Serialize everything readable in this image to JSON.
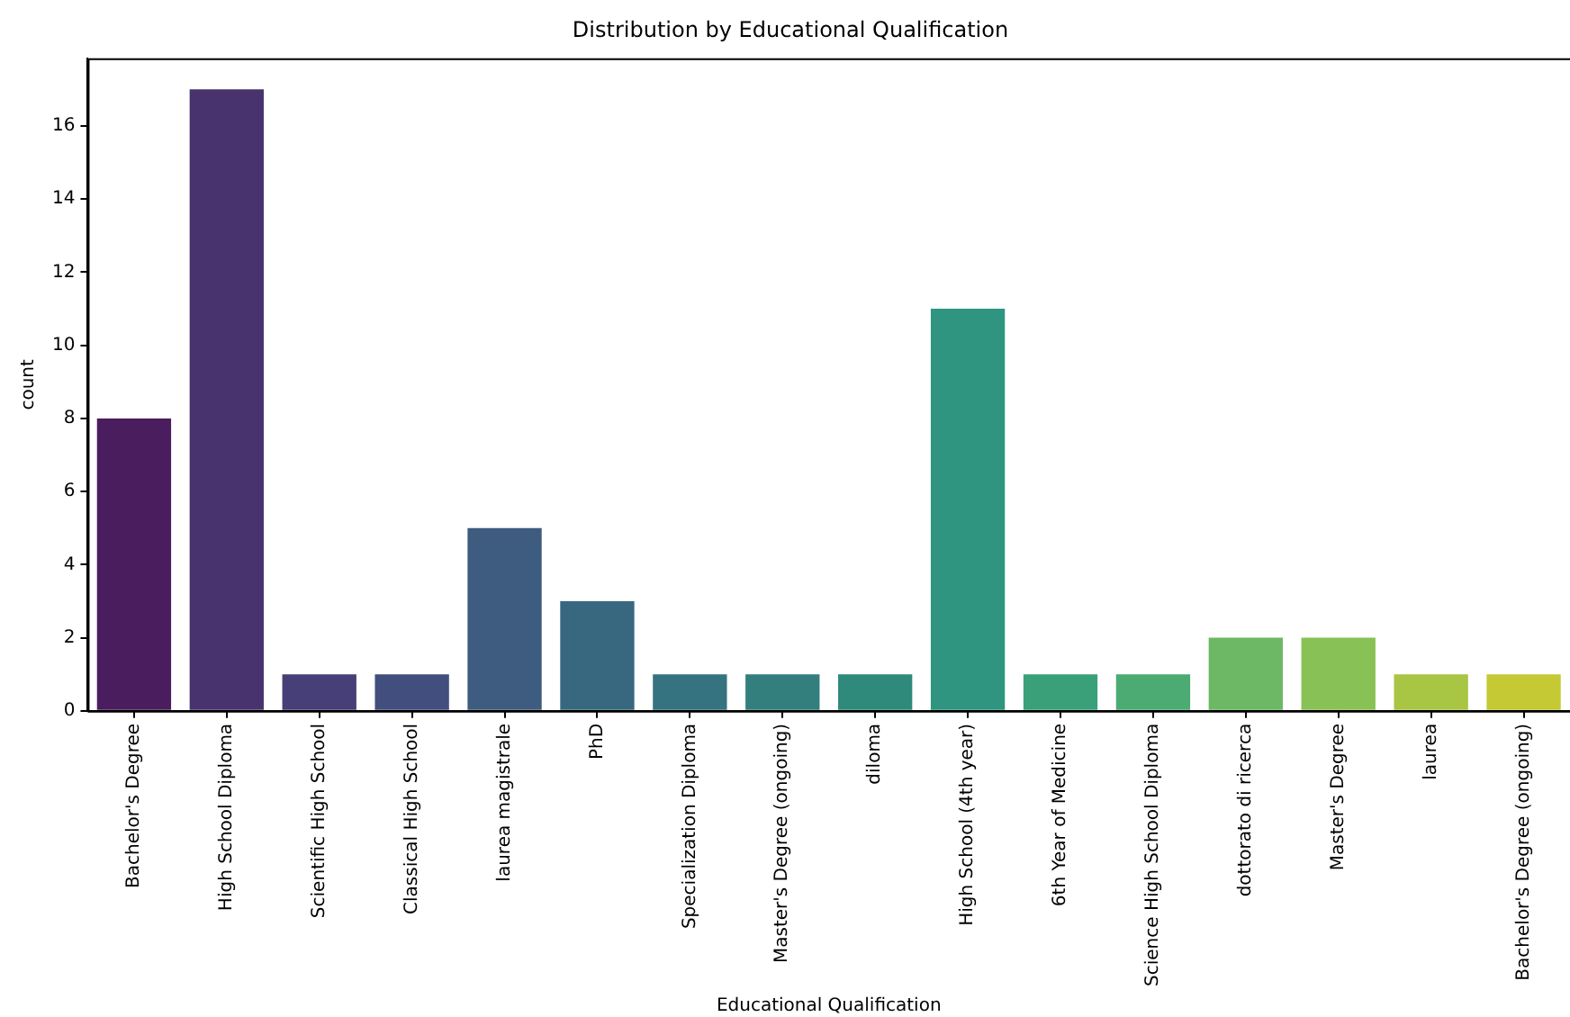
{
  "chart_data": {
    "type": "bar",
    "title": "Distribution by Educational Qualification",
    "xlabel": "Educational Qualification",
    "ylabel": "count",
    "categories": [
      "Bachelor's Degree",
      "High School Diploma",
      "Scientific High School",
      "Classical High School",
      "laurea magistrale",
      "PhD",
      "Specialization Diploma",
      "Master's Degree (ongoing)",
      "diloma",
      "High School (4th year)",
      "6th Year of Medicine",
      "Science High School Diploma",
      "dottorato di ricerca",
      "Master's Degree",
      "laurea",
      "Bachelor's Degree (ongoing)"
    ],
    "values": [
      8,
      17,
      1,
      1,
      5,
      3,
      1,
      1,
      1,
      11,
      1,
      1,
      2,
      2,
      1,
      1
    ],
    "colors": [
      "#4a1d5e",
      "#49336f",
      "#463f78",
      "#424e7e",
      "#3e5b80",
      "#386880",
      "#357380",
      "#327f7e",
      "#2f8a7b",
      "#2f9580",
      "#39a07a",
      "#4bab72",
      "#6cb865",
      "#88c155",
      "#a8c543",
      "#c4c934"
    ],
    "ylim": [
      0,
      17.85
    ],
    "yticks": [
      0,
      2,
      4,
      6,
      8,
      10,
      12,
      14,
      16
    ],
    "grid": false,
    "legend": false
  }
}
